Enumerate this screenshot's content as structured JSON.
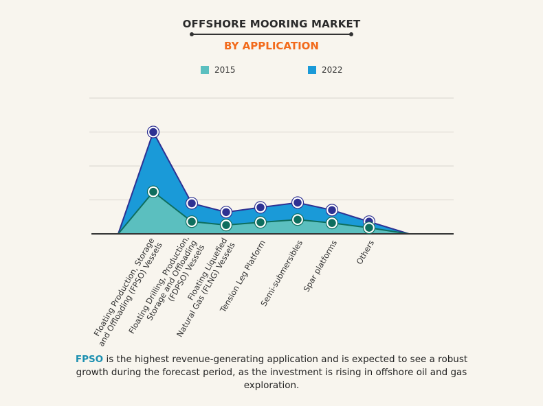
{
  "title": "OFFSHORE MOORING MARKET",
  "subtitle": "BY APPLICATION",
  "legend": [
    {
      "label": "2015",
      "color": "#5bbfbf"
    },
    {
      "label": "2022",
      "color": "#1a9ad8"
    }
  ],
  "chart_data": {
    "type": "area",
    "title": "OFFSHORE MOORING MARKET",
    "subtitle": "BY APPLICATION",
    "categories": [
      [
        "Floating Production, Storage",
        "and Offloading (FPSO) Vessels"
      ],
      [
        "Floating Drilling, Production,",
        "Storage and Offloading",
        "(FDPSO) Vessels"
      ],
      [
        "Floating Liquefied",
        "Natural Gas (FLNG) Vessels"
      ],
      [
        "Tension Leg Platform"
      ],
      [
        "Semi-submersibles"
      ],
      [
        "Spar platforms"
      ],
      [
        "Others"
      ]
    ],
    "series": [
      {
        "name": "2022",
        "values": [
          3.0,
          0.9,
          0.64,
          0.78,
          0.92,
          0.7,
          0.36
        ],
        "fill": "#1a9ad8",
        "line": "#2e3192"
      },
      {
        "name": "2015",
        "values": [
          1.24,
          0.36,
          0.26,
          0.34,
          0.42,
          0.32,
          0.18
        ],
        "fill": "#5bbfbf",
        "line": "#0e6e5e"
      }
    ],
    "ylim": [
      0,
      4
    ],
    "y_tick_labels": false,
    "grid": true,
    "legend_position": "top"
  },
  "footnote": {
    "highlight": "FPSO",
    "text": " is the highest revenue-generating application and is expected to see a robust growth during the forecast period, as the investment is rising in offshore oil and gas exploration."
  }
}
